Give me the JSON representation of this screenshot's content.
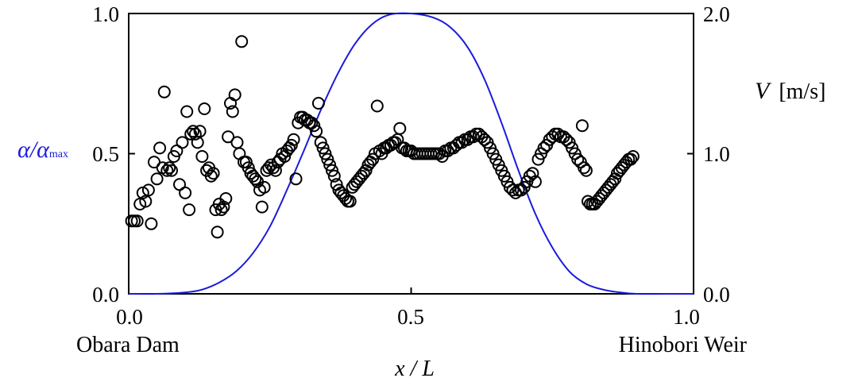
{
  "chart_data": {
    "type": "scatter",
    "title": "",
    "xlabel": "x / L",
    "xlim": [
      0,
      1
    ],
    "x_ticks": [
      "0.0",
      "0.5",
      "1.0"
    ],
    "x_end_labels": {
      "left": "Obara Dam",
      "right": "Hinobori Weir"
    },
    "ylabel_left": {
      "main": "α/α",
      "sub": "max"
    },
    "ylim_left": [
      0,
      1
    ],
    "y_ticks_left": [
      "0.0",
      "0.5",
      "1.0"
    ],
    "ylabel_right": {
      "var": "V",
      "unit": "[m/s]"
    },
    "ylim_right": [
      0,
      2
    ],
    "y_ticks_right": [
      "0.0",
      "1.0",
      "2.0"
    ],
    "grid": false,
    "colors": {
      "curve": "#1a1adc",
      "markers": "#000000",
      "left_axis_label": "#1a1adc"
    },
    "curve": {
      "axis": "right",
      "x": [
        0.0,
        0.05,
        0.1,
        0.13,
        0.16,
        0.19,
        0.22,
        0.25,
        0.28,
        0.31,
        0.34,
        0.37,
        0.4,
        0.43,
        0.46,
        0.5,
        0.54,
        0.57,
        0.6,
        0.63,
        0.66,
        0.69,
        0.72,
        0.75,
        0.78,
        0.81,
        0.84,
        0.87,
        0.9,
        0.95,
        1.0
      ],
      "y": [
        0.0,
        0.0,
        0.01,
        0.03,
        0.08,
        0.16,
        0.29,
        0.48,
        0.74,
        1.02,
        1.31,
        1.57,
        1.78,
        1.92,
        1.99,
        2.0,
        1.97,
        1.9,
        1.76,
        1.53,
        1.22,
        0.88,
        0.57,
        0.33,
        0.16,
        0.07,
        0.03,
        0.01,
        0.0,
        0.0,
        0.0
      ]
    },
    "points": [
      [
        0.005,
        0.26
      ],
      [
        0.01,
        0.26
      ],
      [
        0.015,
        0.26
      ],
      [
        0.02,
        0.32
      ],
      [
        0.025,
        0.36
      ],
      [
        0.03,
        0.33
      ],
      [
        0.035,
        0.37
      ],
      [
        0.04,
        0.25
      ],
      [
        0.045,
        0.47
      ],
      [
        0.05,
        0.41
      ],
      [
        0.055,
        0.52
      ],
      [
        0.06,
        0.45
      ],
      [
        0.063,
        0.72
      ],
      [
        0.068,
        0.44
      ],
      [
        0.072,
        0.45
      ],
      [
        0.076,
        0.44
      ],
      [
        0.08,
        0.49
      ],
      [
        0.085,
        0.51
      ],
      [
        0.09,
        0.39
      ],
      [
        0.095,
        0.54
      ],
      [
        0.1,
        0.36
      ],
      [
        0.103,
        0.65
      ],
      [
        0.107,
        0.3
      ],
      [
        0.11,
        0.57
      ],
      [
        0.114,
        0.58
      ],
      [
        0.118,
        0.57
      ],
      [
        0.122,
        0.54
      ],
      [
        0.126,
        0.58
      ],
      [
        0.13,
        0.49
      ],
      [
        0.134,
        0.66
      ],
      [
        0.138,
        0.44
      ],
      [
        0.142,
        0.45
      ],
      [
        0.146,
        0.42
      ],
      [
        0.15,
        0.43
      ],
      [
        0.154,
        0.3
      ],
      [
        0.157,
        0.22
      ],
      [
        0.16,
        0.32
      ],
      [
        0.164,
        0.3
      ],
      [
        0.168,
        0.31
      ],
      [
        0.172,
        0.34
      ],
      [
        0.176,
        0.56
      ],
      [
        0.18,
        0.68
      ],
      [
        0.184,
        0.65
      ],
      [
        0.188,
        0.71
      ],
      [
        0.192,
        0.54
      ],
      [
        0.196,
        0.5
      ],
      [
        0.2,
        0.9
      ],
      [
        0.204,
        0.47
      ],
      [
        0.208,
        0.47
      ],
      [
        0.212,
        0.45
      ],
      [
        0.216,
        0.43
      ],
      [
        0.22,
        0.42
      ],
      [
        0.224,
        0.41
      ],
      [
        0.228,
        0.4
      ],
      [
        0.232,
        0.37
      ],
      [
        0.236,
        0.31
      ],
      [
        0.24,
        0.38
      ],
      [
        0.244,
        0.44
      ],
      [
        0.248,
        0.45
      ],
      [
        0.252,
        0.46
      ],
      [
        0.256,
        0.45
      ],
      [
        0.26,
        0.44
      ],
      [
        0.264,
        0.47
      ],
      [
        0.268,
        0.48
      ],
      [
        0.272,
        0.5
      ],
      [
        0.276,
        0.49
      ],
      [
        0.28,
        0.51
      ],
      [
        0.284,
        0.52
      ],
      [
        0.288,
        0.53
      ],
      [
        0.292,
        0.55
      ],
      [
        0.296,
        0.41
      ],
      [
        0.3,
        0.61
      ],
      [
        0.304,
        0.63
      ],
      [
        0.308,
        0.63
      ],
      [
        0.312,
        0.62
      ],
      [
        0.316,
        0.62
      ],
      [
        0.32,
        0.61
      ],
      [
        0.324,
        0.61
      ],
      [
        0.328,
        0.6
      ],
      [
        0.332,
        0.58
      ],
      [
        0.336,
        0.68
      ],
      [
        0.34,
        0.54
      ],
      [
        0.344,
        0.52
      ],
      [
        0.348,
        0.5
      ],
      [
        0.352,
        0.48
      ],
      [
        0.356,
        0.46
      ],
      [
        0.36,
        0.44
      ],
      [
        0.364,
        0.42
      ],
      [
        0.368,
        0.39
      ],
      [
        0.372,
        0.37
      ],
      [
        0.376,
        0.36
      ],
      [
        0.38,
        0.35
      ],
      [
        0.384,
        0.34
      ],
      [
        0.388,
        0.33
      ],
      [
        0.392,
        0.33
      ],
      [
        0.396,
        0.38
      ],
      [
        0.4,
        0.39
      ],
      [
        0.404,
        0.4
      ],
      [
        0.408,
        0.41
      ],
      [
        0.412,
        0.42
      ],
      [
        0.416,
        0.43
      ],
      [
        0.42,
        0.44
      ],
      [
        0.424,
        0.46
      ],
      [
        0.428,
        0.47
      ],
      [
        0.432,
        0.48
      ],
      [
        0.436,
        0.5
      ],
      [
        0.44,
        0.67
      ],
      [
        0.444,
        0.51
      ],
      [
        0.448,
        0.5
      ],
      [
        0.452,
        0.52
      ],
      [
        0.456,
        0.52
      ],
      [
        0.46,
        0.53
      ],
      [
        0.464,
        0.53
      ],
      [
        0.468,
        0.54
      ],
      [
        0.472,
        0.54
      ],
      [
        0.476,
        0.55
      ],
      [
        0.48,
        0.59
      ],
      [
        0.484,
        0.52
      ],
      [
        0.488,
        0.52
      ],
      [
        0.492,
        0.51
      ],
      [
        0.496,
        0.51
      ],
      [
        0.5,
        0.51
      ],
      [
        0.505,
        0.5
      ],
      [
        0.51,
        0.5
      ],
      [
        0.515,
        0.5
      ],
      [
        0.52,
        0.5
      ],
      [
        0.525,
        0.5
      ],
      [
        0.53,
        0.5
      ],
      [
        0.535,
        0.5
      ],
      [
        0.54,
        0.5
      ],
      [
        0.545,
        0.5
      ],
      [
        0.55,
        0.5
      ],
      [
        0.555,
        0.49
      ],
      [
        0.56,
        0.51
      ],
      [
        0.565,
        0.51
      ],
      [
        0.57,
        0.52
      ],
      [
        0.575,
        0.52
      ],
      [
        0.58,
        0.53
      ],
      [
        0.585,
        0.54
      ],
      [
        0.59,
        0.54
      ],
      [
        0.595,
        0.55
      ],
      [
        0.6,
        0.55
      ],
      [
        0.605,
        0.56
      ],
      [
        0.61,
        0.56
      ],
      [
        0.615,
        0.57
      ],
      [
        0.62,
        0.57
      ],
      [
        0.625,
        0.56
      ],
      [
        0.63,
        0.55
      ],
      [
        0.635,
        0.54
      ],
      [
        0.64,
        0.52
      ],
      [
        0.645,
        0.5
      ],
      [
        0.65,
        0.48
      ],
      [
        0.655,
        0.46
      ],
      [
        0.66,
        0.44
      ],
      [
        0.665,
        0.42
      ],
      [
        0.67,
        0.4
      ],
      [
        0.675,
        0.38
      ],
      [
        0.68,
        0.37
      ],
      [
        0.685,
        0.36
      ],
      [
        0.69,
        0.37
      ],
      [
        0.695,
        0.37
      ],
      [
        0.7,
        0.38
      ],
      [
        0.705,
        0.4
      ],
      [
        0.71,
        0.42
      ],
      [
        0.715,
        0.43
      ],
      [
        0.72,
        0.4
      ],
      [
        0.725,
        0.48
      ],
      [
        0.73,
        0.5
      ],
      [
        0.735,
        0.52
      ],
      [
        0.74,
        0.53
      ],
      [
        0.745,
        0.55
      ],
      [
        0.75,
        0.56
      ],
      [
        0.755,
        0.57
      ],
      [
        0.76,
        0.57
      ],
      [
        0.765,
        0.56
      ],
      [
        0.77,
        0.56
      ],
      [
        0.775,
        0.55
      ],
      [
        0.78,
        0.54
      ],
      [
        0.785,
        0.52
      ],
      [
        0.79,
        0.5
      ],
      [
        0.795,
        0.48
      ],
      [
        0.8,
        0.47
      ],
      [
        0.803,
        0.6
      ],
      [
        0.806,
        0.45
      ],
      [
        0.81,
        0.44
      ],
      [
        0.813,
        0.33
      ],
      [
        0.817,
        0.32
      ],
      [
        0.821,
        0.32
      ],
      [
        0.825,
        0.32
      ],
      [
        0.829,
        0.33
      ],
      [
        0.833,
        0.34
      ],
      [
        0.837,
        0.35
      ],
      [
        0.841,
        0.36
      ],
      [
        0.845,
        0.37
      ],
      [
        0.849,
        0.38
      ],
      [
        0.853,
        0.39
      ],
      [
        0.857,
        0.4
      ],
      [
        0.861,
        0.41
      ],
      [
        0.865,
        0.43
      ],
      [
        0.869,
        0.44
      ],
      [
        0.873,
        0.45
      ],
      [
        0.877,
        0.46
      ],
      [
        0.881,
        0.47
      ],
      [
        0.885,
        0.48
      ],
      [
        0.889,
        0.48
      ],
      [
        0.893,
        0.49
      ]
    ]
  }
}
